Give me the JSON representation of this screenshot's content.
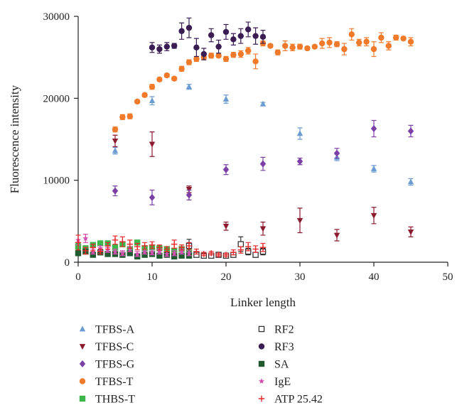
{
  "chart_data": {
    "type": "scatter",
    "title": "",
    "xlabel": "Linker length",
    "ylabel": "Fluorescence intensity",
    "xlim": [
      0,
      50
    ],
    "ylim": [
      0,
      30000
    ],
    "xticks": [
      "0",
      "10",
      "20",
      "30",
      "40",
      "50"
    ],
    "yticks": [
      "0",
      "10000",
      "20000",
      "30000"
    ],
    "grid": false,
    "legend_position": "bottom",
    "series": [
      {
        "name": "TFBS-A",
        "color": "#6a9bd1",
        "marker": "triangle-up",
        "points": [
          [
            5,
            13600,
            400
          ],
          [
            10,
            19700,
            500
          ],
          [
            15,
            21400,
            300
          ],
          [
            20,
            19900,
            500
          ],
          [
            25,
            19300,
            200
          ],
          [
            30,
            15700,
            700
          ],
          [
            35,
            12800,
            400
          ],
          [
            40,
            11400,
            400
          ],
          [
            45,
            9800,
            400
          ]
        ]
      },
      {
        "name": "TFBS-C",
        "color": "#8b1a2e",
        "marker": "triangle-down",
        "points": [
          [
            5,
            14800,
            700
          ],
          [
            10,
            14400,
            1500
          ],
          [
            15,
            8900,
            400
          ],
          [
            20,
            4400,
            500
          ],
          [
            25,
            4100,
            800
          ],
          [
            30,
            5100,
            1500
          ],
          [
            35,
            3300,
            700
          ],
          [
            40,
            5700,
            1000
          ],
          [
            45,
            3700,
            600
          ]
        ]
      },
      {
        "name": "TFBS-G",
        "color": "#7b3fa6",
        "marker": "diamond",
        "points": [
          [
            5,
            8700,
            600
          ],
          [
            10,
            7900,
            900
          ],
          [
            15,
            8200,
            600
          ],
          [
            20,
            11300,
            600
          ],
          [
            25,
            12000,
            800
          ],
          [
            30,
            12300,
            400
          ],
          [
            35,
            13300,
            600
          ],
          [
            40,
            16300,
            1000
          ],
          [
            45,
            16000,
            700
          ]
        ]
      },
      {
        "name": "TFBS-T",
        "color": "#f07a2a",
        "marker": "circle",
        "points": [
          [
            5,
            16200,
            300
          ],
          [
            6,
            17700,
            300
          ],
          [
            7,
            17800,
            300
          ],
          [
            8,
            19600,
            200
          ],
          [
            9,
            20400,
            200
          ],
          [
            10,
            21400,
            300
          ],
          [
            11,
            22300,
            200
          ],
          [
            12,
            22800,
            200
          ],
          [
            13,
            22400,
            200
          ],
          [
            14,
            23600,
            300
          ],
          [
            15,
            24400,
            300
          ],
          [
            16,
            24800,
            300
          ],
          [
            17,
            25000,
            300
          ],
          [
            18,
            25200,
            300
          ],
          [
            19,
            25200,
            200
          ],
          [
            20,
            24800,
            300
          ],
          [
            21,
            25300,
            300
          ],
          [
            22,
            25400,
            400
          ],
          [
            23,
            25800,
            400
          ],
          [
            24,
            24500,
            900
          ],
          [
            25,
            26700,
            300
          ],
          [
            26,
            26400,
            200
          ],
          [
            27,
            25600,
            300
          ],
          [
            28,
            26400,
            600
          ],
          [
            29,
            26200,
            400
          ],
          [
            30,
            26300,
            300
          ],
          [
            31,
            26100,
            200
          ],
          [
            32,
            26300,
            200
          ],
          [
            33,
            26700,
            600
          ],
          [
            34,
            26800,
            600
          ],
          [
            35,
            26600,
            300
          ],
          [
            36,
            26000,
            700
          ],
          [
            37,
            27800,
            700
          ],
          [
            38,
            26800,
            400
          ],
          [
            39,
            26900,
            500
          ],
          [
            40,
            26000,
            900
          ],
          [
            41,
            27400,
            600
          ],
          [
            42,
            26400,
            500
          ],
          [
            43,
            27400,
            300
          ],
          [
            44,
            27300,
            200
          ],
          [
            45,
            26900,
            500
          ]
        ]
      },
      {
        "name": "THBS-T",
        "color": "#3cb64a",
        "marker": "square",
        "points": [
          [
            0,
            1900,
            400
          ],
          [
            1,
            1700,
            300
          ],
          [
            2,
            2100,
            300
          ],
          [
            3,
            2300,
            300
          ],
          [
            4,
            2300,
            300
          ],
          [
            5,
            1800,
            300
          ],
          [
            6,
            2200,
            300
          ],
          [
            7,
            1600,
            300
          ],
          [
            8,
            2400,
            200
          ],
          [
            9,
            1700,
            200
          ],
          [
            10,
            1800,
            300
          ],
          [
            11,
            1700,
            200
          ],
          [
            12,
            1600,
            200
          ],
          [
            13,
            1400,
            200
          ],
          [
            14,
            1600,
            200
          ],
          [
            15,
            1200,
            300
          ]
        ]
      },
      {
        "name": "RF2",
        "color": "#333333",
        "marker": "square-open",
        "points": [
          [
            15,
            2000,
            800
          ],
          [
            16,
            900,
            200
          ],
          [
            17,
            800,
            200
          ],
          [
            18,
            800,
            200
          ],
          [
            19,
            900,
            200
          ],
          [
            20,
            800,
            200
          ],
          [
            21,
            900,
            200
          ],
          [
            22,
            2200,
            900
          ],
          [
            23,
            1300,
            400
          ],
          [
            24,
            900,
            300
          ],
          [
            25,
            1300,
            400
          ]
        ]
      },
      {
        "name": "RF3",
        "color": "#3a1d52",
        "marker": "circle",
        "points": [
          [
            10,
            26200,
            600
          ],
          [
            11,
            26000,
            500
          ],
          [
            12,
            26300,
            500
          ],
          [
            13,
            26400,
            300
          ],
          [
            14,
            28200,
            1000
          ],
          [
            15,
            28600,
            1200
          ],
          [
            16,
            26200,
            1100
          ],
          [
            17,
            25400,
            700
          ],
          [
            18,
            27700,
            800
          ],
          [
            19,
            26300,
            800
          ],
          [
            20,
            28100,
            900
          ],
          [
            21,
            27200,
            700
          ],
          [
            22,
            27600,
            900
          ],
          [
            23,
            28400,
            900
          ],
          [
            24,
            27600,
            1000
          ],
          [
            25,
            27500,
            800
          ]
        ]
      },
      {
        "name": "SA",
        "color": "#1f5a30",
        "marker": "square",
        "points": [
          [
            0,
            1100,
            300
          ],
          [
            1,
            1300,
            300
          ],
          [
            2,
            900,
            200
          ],
          [
            3,
            1200,
            300
          ],
          [
            4,
            1000,
            200
          ],
          [
            5,
            1000,
            200
          ],
          [
            6,
            900,
            200
          ],
          [
            7,
            1100,
            200
          ],
          [
            8,
            700,
            200
          ],
          [
            9,
            900,
            200
          ],
          [
            10,
            1000,
            200
          ],
          [
            11,
            800,
            200
          ],
          [
            12,
            900,
            200
          ],
          [
            13,
            700,
            200
          ],
          [
            14,
            800,
            200
          ],
          [
            15,
            800,
            200
          ]
        ]
      },
      {
        "name": "IgE",
        "color": "#d44fb0",
        "marker": "star",
        "points": [
          [
            0,
            2700,
            600
          ],
          [
            1,
            2900,
            500
          ],
          [
            2,
            1300,
            300
          ],
          [
            3,
            1700,
            300
          ],
          [
            4,
            1500,
            300
          ],
          [
            5,
            1300,
            300
          ],
          [
            6,
            1100,
            300
          ],
          [
            7,
            1600,
            300
          ],
          [
            8,
            1000,
            300
          ],
          [
            9,
            1300,
            300
          ],
          [
            10,
            1200,
            300
          ],
          [
            11,
            1300,
            300
          ],
          [
            12,
            1000,
            300
          ],
          [
            13,
            1100,
            300
          ],
          [
            14,
            1300,
            300
          ],
          [
            15,
            1100,
            300
          ]
        ]
      },
      {
        "name": "ATP 25.42",
        "color": "#e8282a",
        "marker": "plus",
        "points": [
          [
            0,
            2400,
            900
          ],
          [
            1,
            1400,
            400
          ],
          [
            2,
            1800,
            400
          ],
          [
            3,
            1300,
            300
          ],
          [
            4,
            2000,
            400
          ],
          [
            5,
            2700,
            500
          ],
          [
            6,
            2500,
            600
          ],
          [
            7,
            2200,
            500
          ],
          [
            8,
            1900,
            400
          ],
          [
            9,
            2000,
            400
          ],
          [
            10,
            2100,
            400
          ],
          [
            11,
            1800,
            300
          ],
          [
            12,
            1600,
            300
          ],
          [
            13,
            2200,
            500
          ],
          [
            14,
            1800,
            300
          ],
          [
            15,
            2000,
            400
          ],
          [
            16,
            1300,
            300
          ],
          [
            17,
            1000,
            200
          ],
          [
            18,
            1100,
            200
          ],
          [
            19,
            900,
            200
          ],
          [
            20,
            900,
            200
          ],
          [
            21,
            1200,
            300
          ],
          [
            22,
            1500,
            400
          ],
          [
            23,
            1900,
            500
          ],
          [
            24,
            1600,
            400
          ],
          [
            25,
            1800,
            500
          ]
        ]
      }
    ]
  }
}
